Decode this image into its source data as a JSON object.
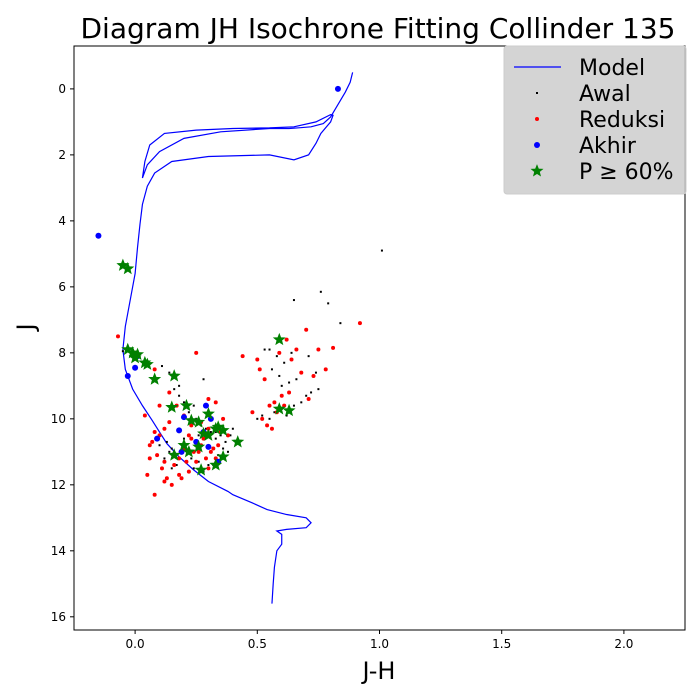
{
  "chart_data": {
    "type": "scatter",
    "title": "Diagram JH Isochrone Fitting Collinder 135",
    "xlabel": "J-H",
    "ylabel": "J",
    "xlim": [
      -0.25,
      2.25
    ],
    "ylim": [
      16.4,
      -1.3
    ],
    "y_inverted": true,
    "grid": false,
    "legend_position": "top-right",
    "x_ticks": [
      "0.0",
      "0.5",
      "1.0",
      "1.5",
      "2.0"
    ],
    "y_ticks": [
      "0",
      "2",
      "4",
      "6",
      "8",
      "10",
      "12",
      "14",
      "16"
    ],
    "series": [
      {
        "name": "Model",
        "kind": "line",
        "color": "#0000ff",
        "x": [
          0.56,
          0.565,
          0.57,
          0.58,
          0.6,
          0.6,
          0.58,
          0.62,
          0.7,
          0.72,
          0.7,
          0.62,
          0.54,
          0.48,
          0.4,
          0.38,
          0.3,
          0.24,
          0.18,
          0.13,
          0.1,
          0.07,
          0.03,
          -0.01,
          -0.04,
          -0.05,
          -0.04,
          -0.02,
          0.0,
          0.01,
          0.02,
          0.03,
          0.05,
          0.08,
          0.15,
          0.3,
          0.55,
          0.65,
          0.71,
          0.74,
          0.76,
          0.8,
          0.81,
          0.8,
          0.74,
          0.65,
          0.55,
          0.4,
          0.25,
          0.12,
          0.06,
          0.04,
          0.03,
          0.035,
          0.05,
          0.1,
          0.2,
          0.35,
          0.55,
          0.63,
          0.67,
          0.72,
          0.77,
          0.8,
          0.82,
          0.84,
          0.86,
          0.88,
          0.89
        ],
        "y": [
          15.6,
          15.0,
          14.5,
          14.0,
          13.8,
          13.5,
          13.4,
          13.35,
          13.3,
          13.15,
          13.0,
          12.9,
          12.75,
          12.55,
          12.3,
          12.2,
          11.9,
          11.55,
          11.15,
          10.75,
          10.4,
          10.05,
          9.6,
          9.1,
          8.5,
          7.9,
          7.2,
          6.4,
          5.6,
          4.8,
          4.1,
          3.5,
          2.95,
          2.55,
          2.2,
          2.05,
          2.0,
          2.15,
          2.0,
          1.65,
          1.35,
          1.0,
          0.8,
          0.78,
          1.0,
          1.15,
          1.18,
          1.2,
          1.25,
          1.35,
          1.7,
          2.2,
          2.7,
          2.6,
          2.3,
          1.9,
          1.5,
          1.3,
          1.2,
          1.2,
          1.18,
          1.15,
          1.05,
          0.85,
          0.6,
          0.35,
          0.1,
          -0.2,
          -0.5
        ]
      },
      {
        "name": "Awal",
        "kind": "scatter",
        "marker": "point",
        "color": "#000000",
        "x": [
          1.01,
          0.76,
          0.79,
          0.65,
          0.84,
          -0.05,
          -0.02,
          0.0,
          0.05,
          0.08,
          0.11,
          0.14,
          0.16,
          0.18,
          0.2,
          0.22,
          0.25,
          0.27,
          0.29,
          0.31,
          0.33,
          0.35,
          0.37,
          0.39,
          0.4,
          0.13,
          0.15,
          0.19,
          0.23,
          0.26,
          0.3,
          0.34,
          0.36,
          0.38,
          0.12,
          0.17,
          0.21,
          0.24,
          0.28,
          0.32,
          0.35,
          0.1,
          0.14,
          0.2,
          0.26,
          0.33,
          0.15,
          0.22,
          0.29,
          0.5,
          0.52,
          0.55,
          0.57,
          0.6,
          0.62,
          0.65,
          0.68,
          0.7,
          0.72,
          0.75,
          0.58,
          0.61,
          0.64,
          0.53,
          0.56,
          0.59,
          0.63,
          0.66,
          0.71,
          0.74,
          0.55,
          0.6,
          0.28,
          0.18,
          0.24
        ],
        "y": [
          4.9,
          6.15,
          6.5,
          6.4,
          7.1,
          7.95,
          8.1,
          8.2,
          8.35,
          8.5,
          8.4,
          8.6,
          9.1,
          9.3,
          9.5,
          9.8,
          10.0,
          10.2,
          10.3,
          10.4,
          10.6,
          10.5,
          10.7,
          10.5,
          10.3,
          10.7,
          10.9,
          11.0,
          11.2,
          11.3,
          11.4,
          11.1,
          10.9,
          11.0,
          11.2,
          11.4,
          11.3,
          11.5,
          11.6,
          11.4,
          11.2,
          10.8,
          11.0,
          10.6,
          10.5,
          10.4,
          11.5,
          10.9,
          11.2,
          10.0,
          9.9,
          10.0,
          9.8,
          9.7,
          9.9,
          9.6,
          9.5,
          9.3,
          9.2,
          9.1,
          8.1,
          8.3,
          8.0,
          7.9,
          8.5,
          8.7,
          8.9,
          8.8,
          8.1,
          8.6,
          7.9,
          9.0,
          8.8,
          9.0,
          9.6
        ]
      },
      {
        "name": "Reduksi",
        "kind": "scatter",
        "marker": "dot",
        "color": "#ff0000",
        "x": [
          0.92,
          0.81,
          0.78,
          0.73,
          0.75,
          0.7,
          0.62,
          0.59,
          0.64,
          0.66,
          0.68,
          0.71,
          0.57,
          0.6,
          0.63,
          0.55,
          0.58,
          0.61,
          0.52,
          0.54,
          0.56,
          0.5,
          0.51,
          0.53,
          0.48,
          0.44,
          0.25,
          0.3,
          0.33,
          0.36,
          0.27,
          0.23,
          0.2,
          0.17,
          0.14,
          0.12,
          0.1,
          0.08,
          0.06,
          0.05,
          0.08,
          0.11,
          0.13,
          0.15,
          0.18,
          0.21,
          0.24,
          0.27,
          0.3,
          0.33,
          0.06,
          0.09,
          0.12,
          0.16,
          0.19,
          0.22,
          0.26,
          0.29,
          0.32,
          0.08,
          0.04,
          0.1,
          0.14,
          0.22,
          0.3,
          0.35,
          0.38,
          0.25,
          -0.07,
          0.07,
          0.16,
          0.2,
          0.28,
          0.34,
          0.12,
          0.18,
          0.23,
          0.31
        ],
        "y": [
          7.1,
          7.85,
          8.5,
          8.7,
          7.9,
          7.3,
          7.6,
          8.0,
          8.2,
          7.9,
          8.6,
          9.4,
          9.5,
          9.3,
          9.2,
          9.6,
          9.8,
          9.6,
          10.0,
          10.2,
          10.3,
          8.2,
          8.5,
          8.8,
          9.8,
          8.1,
          8.0,
          9.4,
          9.5,
          10.0,
          10.1,
          10.2,
          9.9,
          9.6,
          10.1,
          10.3,
          10.5,
          10.4,
          11.2,
          11.7,
          12.3,
          11.5,
          11.8,
          12.0,
          11.7,
          11.3,
          11.0,
          10.8,
          11.5,
          11.2,
          10.8,
          11.1,
          11.3,
          11.4,
          11.8,
          11.6,
          11.0,
          11.2,
          10.9,
          8.5,
          9.9,
          9.6,
          9.2,
          10.5,
          10.3,
          10.4,
          10.5,
          11.3,
          7.5,
          10.7,
          11.1,
          10.9,
          10.6,
          10.8,
          11.9,
          11.2,
          10.6,
          11.0
        ]
      },
      {
        "name": "Akhir",
        "kind": "scatter",
        "marker": "circle",
        "color": "#0000ff",
        "x": [
          0.83,
          -0.15,
          -0.03,
          0.0,
          0.01,
          0.09,
          0.18,
          0.2,
          0.25,
          0.28,
          0.29,
          0.31,
          0.33,
          0.19,
          0.3,
          0.34
        ],
        "y": [
          0.0,
          4.45,
          8.7,
          8.45,
          8.1,
          10.6,
          10.35,
          9.95,
          10.7,
          10.4,
          9.6,
          10.0,
          10.3,
          11.0,
          10.85,
          11.3
        ]
      },
      {
        "name": "P ≥ 60%",
        "kind": "scatter",
        "marker": "star",
        "color": "#008000",
        "x": [
          -0.05,
          -0.03,
          0.59,
          0.63,
          -0.03,
          -0.01,
          0.0,
          0.01,
          0.04,
          0.05,
          0.08,
          0.16,
          0.15,
          0.21,
          0.23,
          0.26,
          0.3,
          0.33,
          0.36,
          0.42,
          0.3,
          0.34,
          0.28,
          0.26,
          0.2,
          0.22,
          0.16,
          0.36,
          0.33,
          0.27,
          0.59
        ],
        "y": [
          5.35,
          5.45,
          7.6,
          9.75,
          7.9,
          8.0,
          8.15,
          8.05,
          8.3,
          8.35,
          8.8,
          8.7,
          9.65,
          9.6,
          10.05,
          10.1,
          9.85,
          10.3,
          10.35,
          10.7,
          10.5,
          10.25,
          10.45,
          10.85,
          10.8,
          11.0,
          11.1,
          11.15,
          11.4,
          11.55,
          9.7
        ]
      }
    ]
  }
}
